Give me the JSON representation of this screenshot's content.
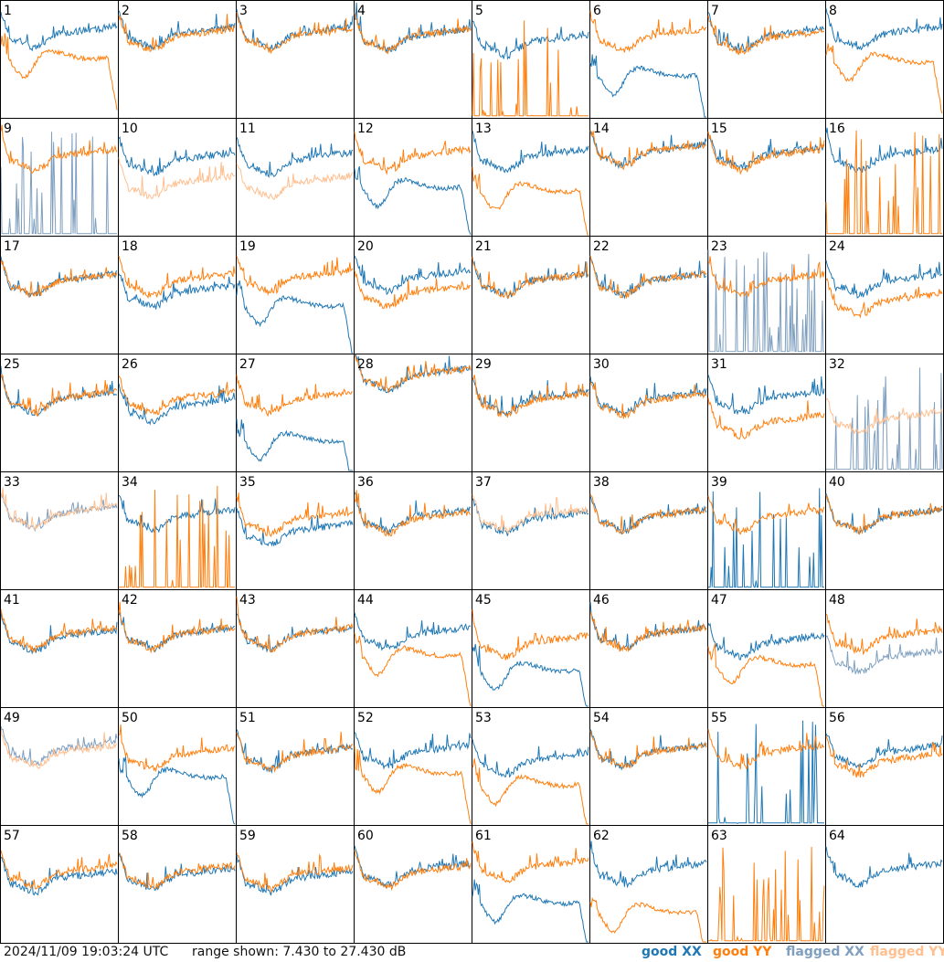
{
  "footer": {
    "timestamp": "2024/11/09 19:03:24 UTC",
    "range_text": "range shown: 7.430 to 27.430 dB",
    "legend_good_xx": "good XX",
    "legend_good_yy": "good YY",
    "legend_flagged_xx": "flagged XX",
    "legend_flagged_yy": "flagged YY"
  },
  "colors": {
    "good_xx": "#1f77b4",
    "good_yy": "#ff7f0e",
    "flagged_xx": "#7f9fbf",
    "flagged_yy": "#ffbf8f"
  },
  "chart_data": {
    "type": "line",
    "layout": "8x8 small multiples",
    "y_range_db": [
      7.43,
      27.43
    ],
    "series_names": [
      "good XX",
      "good YY",
      "flagged XX",
      "flagged YY"
    ],
    "tiles": [
      {
        "id": 1,
        "xx": "good",
        "yy": "good",
        "xx_level": 0.72,
        "yy_level": 0.55,
        "xx_shape": "normal",
        "yy_shape": "dip"
      },
      {
        "id": 2,
        "xx": "good",
        "yy": "good",
        "xx_level": 0.72,
        "yy_level": 0.7,
        "xx_shape": "normal",
        "yy_shape": "normal"
      },
      {
        "id": 3,
        "xx": "good",
        "yy": "good",
        "xx_level": 0.72,
        "yy_level": 0.7,
        "xx_shape": "normal",
        "yy_shape": "normal"
      },
      {
        "id": 4,
        "xx": "good",
        "yy": "good",
        "xx_level": 0.7,
        "yy_level": 0.7,
        "xx_shape": "normal",
        "yy_shape": "normal"
      },
      {
        "id": 5,
        "xx": "good",
        "yy": "good",
        "xx_level": 0.65,
        "yy_level": 0.0,
        "xx_shape": "normal",
        "yy_shape": "spiky"
      },
      {
        "id": 6,
        "xx": "good",
        "yy": "good",
        "xx_level": 0.4,
        "yy_level": 0.7,
        "xx_shape": "dip",
        "yy_shape": "normal"
      },
      {
        "id": 7,
        "xx": "good",
        "yy": "good",
        "xx_level": 0.7,
        "yy_level": 0.68,
        "xx_shape": "normal",
        "yy_shape": "normal"
      },
      {
        "id": 8,
        "xx": "good",
        "yy": "good",
        "xx_level": 0.72,
        "yy_level": 0.52,
        "xx_shape": "normal",
        "yy_shape": "dip"
      },
      {
        "id": 9,
        "xx": "flagged",
        "yy": "good",
        "xx_level": 0.0,
        "yy_level": 0.68,
        "xx_shape": "spiky",
        "yy_shape": "normal"
      },
      {
        "id": 10,
        "xx": "good",
        "yy": "flagged",
        "xx_level": 0.65,
        "yy_level": 0.45,
        "xx_shape": "normal",
        "yy_shape": "normal"
      },
      {
        "id": 11,
        "xx": "good",
        "yy": "flagged",
        "xx_level": 0.65,
        "yy_level": 0.45,
        "xx_shape": "normal",
        "yy_shape": "normal"
      },
      {
        "id": 12,
        "xx": "good",
        "yy": "good",
        "xx_level": 0.45,
        "yy_level": 0.68,
        "xx_shape": "dip",
        "yy_shape": "normal"
      },
      {
        "id": 13,
        "xx": "good",
        "yy": "good",
        "xx_level": 0.68,
        "yy_level": 0.42,
        "xx_shape": "normal",
        "yy_shape": "dip"
      },
      {
        "id": 14,
        "xx": "good",
        "yy": "good",
        "xx_level": 0.72,
        "yy_level": 0.72,
        "xx_shape": "normal",
        "yy_shape": "normal"
      },
      {
        "id": 15,
        "xx": "good",
        "yy": "good",
        "xx_level": 0.7,
        "yy_level": 0.68,
        "xx_shape": "normal",
        "yy_shape": "normal"
      },
      {
        "id": 16,
        "xx": "good",
        "yy": "good",
        "xx_level": 0.68,
        "yy_level": 0.0,
        "xx_shape": "normal",
        "yy_shape": "spiky"
      },
      {
        "id": 17,
        "xx": "good",
        "yy": "good",
        "xx_level": 0.62,
        "yy_level": 0.62,
        "xx_shape": "normal",
        "yy_shape": "normal"
      },
      {
        "id": 18,
        "xx": "good",
        "yy": "good",
        "xx_level": 0.52,
        "yy_level": 0.62,
        "xx_shape": "normal",
        "yy_shape": "normal"
      },
      {
        "id": 19,
        "xx": "good",
        "yy": "good",
        "xx_level": 0.45,
        "yy_level": 0.65,
        "xx_shape": "dip",
        "yy_shape": "normal"
      },
      {
        "id": 20,
        "xx": "good",
        "yy": "good",
        "xx_level": 0.65,
        "yy_level": 0.52,
        "xx_shape": "normal",
        "yy_shape": "normal"
      },
      {
        "id": 21,
        "xx": "good",
        "yy": "good",
        "xx_level": 0.62,
        "yy_level": 0.62,
        "xx_shape": "normal",
        "yy_shape": "normal"
      },
      {
        "id": 22,
        "xx": "good",
        "yy": "good",
        "xx_level": 0.62,
        "yy_level": 0.62,
        "xx_shape": "normal",
        "yy_shape": "normal"
      },
      {
        "id": 23,
        "xx": "flagged",
        "yy": "good",
        "xx_level": 0.0,
        "yy_level": 0.62,
        "xx_shape": "spiky",
        "yy_shape": "normal"
      },
      {
        "id": 24,
        "xx": "good",
        "yy": "good",
        "xx_level": 0.62,
        "yy_level": 0.45,
        "xx_shape": "normal",
        "yy_shape": "normal"
      },
      {
        "id": 25,
        "xx": "good",
        "yy": "good",
        "xx_level": 0.62,
        "yy_level": 0.62,
        "xx_shape": "normal",
        "yy_shape": "normal"
      },
      {
        "id": 26,
        "xx": "good",
        "yy": "good",
        "xx_level": 0.55,
        "yy_level": 0.62,
        "xx_shape": "normal",
        "yy_shape": "normal"
      },
      {
        "id": 27,
        "xx": "good",
        "yy": "good",
        "xx_level": 0.3,
        "yy_level": 0.62,
        "xx_shape": "dip",
        "yy_shape": "normal"
      },
      {
        "id": 28,
        "xx": "good",
        "yy": "good",
        "xx_level": 0.82,
        "yy_level": 0.82,
        "xx_shape": "normal",
        "yy_shape": "normal"
      },
      {
        "id": 29,
        "xx": "good",
        "yy": "good",
        "xx_level": 0.62,
        "yy_level": 0.6,
        "xx_shape": "normal",
        "yy_shape": "normal"
      },
      {
        "id": 30,
        "xx": "good",
        "yy": "good",
        "xx_level": 0.62,
        "yy_level": 0.6,
        "xx_shape": "normal",
        "yy_shape": "normal"
      },
      {
        "id": 31,
        "xx": "good",
        "yy": "good",
        "xx_level": 0.62,
        "yy_level": 0.42,
        "xx_shape": "normal",
        "yy_shape": "normal"
      },
      {
        "id": 32,
        "xx": "flagged",
        "yy": "flagged",
        "xx_level": 0.0,
        "yy_level": 0.45,
        "xx_shape": "spiky",
        "yy_shape": "normal"
      },
      {
        "id": 33,
        "xx": "flagged",
        "yy": "flagged",
        "xx_level": 0.65,
        "yy_level": 0.65,
        "xx_shape": "normal",
        "yy_shape": "normal"
      },
      {
        "id": 34,
        "xx": "good",
        "yy": "good",
        "xx_level": 0.62,
        "yy_level": 0.0,
        "xx_shape": "normal",
        "yy_shape": "spiky"
      },
      {
        "id": 35,
        "xx": "good",
        "yy": "good",
        "xx_level": 0.5,
        "yy_level": 0.6,
        "xx_shape": "normal",
        "yy_shape": "normal"
      },
      {
        "id": 36,
        "xx": "good",
        "yy": "good",
        "xx_level": 0.62,
        "yy_level": 0.6,
        "xx_shape": "normal",
        "yy_shape": "normal"
      },
      {
        "id": 37,
        "xx": "good",
        "yy": "flagged",
        "xx_level": 0.6,
        "yy_level": 0.62,
        "xx_shape": "normal",
        "yy_shape": "normal"
      },
      {
        "id": 38,
        "xx": "good",
        "yy": "good",
        "xx_level": 0.62,
        "yy_level": 0.62,
        "xx_shape": "normal",
        "yy_shape": "normal"
      },
      {
        "id": 39,
        "xx": "good",
        "yy": "good",
        "xx_level": 0.0,
        "yy_level": 0.62,
        "xx_shape": "spiky",
        "yy_shape": "normal"
      },
      {
        "id": 40,
        "xx": "good",
        "yy": "good",
        "xx_level": 0.62,
        "yy_level": 0.62,
        "xx_shape": "normal",
        "yy_shape": "normal"
      },
      {
        "id": 41,
        "xx": "good",
        "yy": "good",
        "xx_level": 0.6,
        "yy_level": 0.62,
        "xx_shape": "normal",
        "yy_shape": "normal"
      },
      {
        "id": 42,
        "xx": "good",
        "yy": "good",
        "xx_level": 0.62,
        "yy_level": 0.62,
        "xx_shape": "normal",
        "yy_shape": "normal"
      },
      {
        "id": 43,
        "xx": "good",
        "yy": "good",
        "xx_level": 0.62,
        "yy_level": 0.62,
        "xx_shape": "normal",
        "yy_shape": "normal"
      },
      {
        "id": 44,
        "xx": "good",
        "yy": "good",
        "xx_level": 0.62,
        "yy_level": 0.48,
        "xx_shape": "normal",
        "yy_shape": "dip"
      },
      {
        "id": 45,
        "xx": "good",
        "yy": "good",
        "xx_level": 0.35,
        "yy_level": 0.55,
        "xx_shape": "dip",
        "yy_shape": "normal"
      },
      {
        "id": 46,
        "xx": "good",
        "yy": "good",
        "xx_level": 0.62,
        "yy_level": 0.62,
        "xx_shape": "normal",
        "yy_shape": "normal"
      },
      {
        "id": 47,
        "xx": "good",
        "yy": "good",
        "xx_level": 0.55,
        "yy_level": 0.4,
        "xx_shape": "normal",
        "yy_shape": "dip"
      },
      {
        "id": 48,
        "xx": "flagged",
        "yy": "good",
        "xx_level": 0.42,
        "yy_level": 0.6,
        "xx_shape": "normal",
        "yy_shape": "normal"
      },
      {
        "id": 49,
        "xx": "flagged",
        "yy": "flagged",
        "xx_level": 0.65,
        "yy_level": 0.62,
        "xx_shape": "normal",
        "yy_shape": "normal"
      },
      {
        "id": 50,
        "xx": "good",
        "yy": "good",
        "xx_level": 0.45,
        "yy_level": 0.6,
        "xx_shape": "dip",
        "yy_shape": "normal"
      },
      {
        "id": 51,
        "xx": "good",
        "yy": "good",
        "xx_level": 0.6,
        "yy_level": 0.6,
        "xx_shape": "normal",
        "yy_shape": "normal"
      },
      {
        "id": 52,
        "xx": "good",
        "yy": "good",
        "xx_level": 0.62,
        "yy_level": 0.48,
        "xx_shape": "normal",
        "yy_shape": "dip"
      },
      {
        "id": 53,
        "xx": "good",
        "yy": "good",
        "xx_level": 0.55,
        "yy_level": 0.38,
        "xx_shape": "normal",
        "yy_shape": "dip"
      },
      {
        "id": 54,
        "xx": "good",
        "yy": "good",
        "xx_level": 0.62,
        "yy_level": 0.62,
        "xx_shape": "normal",
        "yy_shape": "normal"
      },
      {
        "id": 55,
        "xx": "good",
        "yy": "good",
        "xx_level": 0.0,
        "yy_level": 0.62,
        "xx_shape": "spiky",
        "yy_shape": "normal"
      },
      {
        "id": 56,
        "xx": "good",
        "yy": "good",
        "xx_level": 0.62,
        "yy_level": 0.55,
        "xx_shape": "normal",
        "yy_shape": "normal"
      },
      {
        "id": 57,
        "xx": "good",
        "yy": "good",
        "xx_level": 0.55,
        "yy_level": 0.6,
        "xx_shape": "normal",
        "yy_shape": "normal"
      },
      {
        "id": 58,
        "xx": "good",
        "yy": "good",
        "xx_level": 0.58,
        "yy_level": 0.6,
        "xx_shape": "normal",
        "yy_shape": "normal"
      },
      {
        "id": 59,
        "xx": "good",
        "yy": "good",
        "xx_level": 0.55,
        "yy_level": 0.58,
        "xx_shape": "normal",
        "yy_shape": "normal"
      },
      {
        "id": 60,
        "xx": "good",
        "yy": "good",
        "xx_level": 0.62,
        "yy_level": 0.6,
        "xx_shape": "normal",
        "yy_shape": "normal"
      },
      {
        "id": 61,
        "xx": "good",
        "yy": "good",
        "xx_level": 0.38,
        "yy_level": 0.65,
        "xx_shape": "dip",
        "yy_shape": "normal"
      },
      {
        "id": 62,
        "xx": "good",
        "yy": "good",
        "xx_level": 0.62,
        "yy_level": 0.3,
        "xx_shape": "normal",
        "yy_shape": "dip"
      },
      {
        "id": 63,
        "xx": "good",
        "yy": "good",
        "xx_level": 0.0,
        "yy_level": 0.0,
        "xx_shape": "none",
        "yy_shape": "spiky"
      },
      {
        "id": 64,
        "xx": "good",
        "yy": "good",
        "xx_level": 0.62,
        "yy_level": 0.0,
        "xx_shape": "normal",
        "yy_shape": "none"
      }
    ]
  }
}
